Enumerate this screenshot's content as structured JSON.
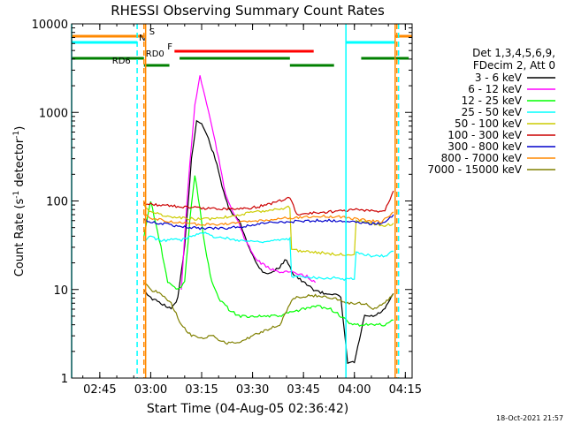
{
  "chart_data": {
    "type": "line",
    "title": "RHESSI Observing Summary Count Rates",
    "xlabel": "Start Time (04-Aug-05 02:36:42)",
    "ylabel_main": "Count Rate (s",
    "ylabel_sup1": "-1",
    "ylabel_mid": " detector",
    "ylabel_sup2": "-1",
    "ylabel_end": ")",
    "x_range": [
      "02:36:42",
      "04:17:00"
    ],
    "x_ticks": [
      {
        "t": "02:45",
        "label": "02:45"
      },
      {
        "t": "03:00",
        "label": "03:00"
      },
      {
        "t": "03:15",
        "label": "03:15"
      },
      {
        "t": "03:30",
        "label": "03:30"
      },
      {
        "t": "03:45",
        "label": "03:45"
      },
      {
        "t": "04:00",
        "label": "04:00"
      },
      {
        "t": "04:15",
        "label": "04:15"
      }
    ],
    "y_scale": "log",
    "ylim": [
      1,
      10000
    ],
    "y_ticks": [
      {
        "v": 1,
        "label": "1"
      },
      {
        "v": 10,
        "label": "10"
      },
      {
        "v": 100,
        "label": "100"
      },
      {
        "v": 1000,
        "label": "1000"
      },
      {
        "v": 10000,
        "label": "10000"
      }
    ],
    "legend_header": [
      "Det 1,3,4,5,6,9,",
      "FDecim 2, Att 0"
    ],
    "legend_placement": "right",
    "series": [
      {
        "name": "3 - 6 keV",
        "color": "#000000",
        "x": [
          "02:58:00",
          "03:00:00",
          "03:03:00",
          "03:06:00",
          "03:08:00",
          "03:10:00",
          "03:12:00",
          "03:13:30",
          "03:15:00",
          "03:17:00",
          "03:19:00",
          "03:21:00",
          "03:23:00",
          "03:26:00",
          "03:29:00",
          "03:31:00",
          "03:33:00",
          "03:35:00",
          "03:38:00",
          "03:40:00",
          "03:42:00",
          "03:45:00",
          "03:48:00",
          "03:51:00",
          "03:54:00",
          "03:56:00",
          "03:58:00",
          "04:00:00",
          "04:03:00",
          "04:06:00",
          "04:09:00",
          "04:11:30"
        ],
        "y": [
          10,
          8,
          7,
          6,
          8,
          30,
          300,
          800,
          750,
          500,
          300,
          150,
          80,
          60,
          30,
          20,
          16,
          15,
          18,
          22,
          15,
          12,
          10,
          9,
          9,
          8,
          1.5,
          1.5,
          5,
          5,
          6,
          9
        ]
      },
      {
        "name": "6 - 12 keV",
        "color": "#ff00ff",
        "x": [
          "03:09:00",
          "03:11:00",
          "03:13:00",
          "03:14:30",
          "03:16:00",
          "03:18:00",
          "03:20:00",
          "03:22:00",
          "03:24:00",
          "03:26:00",
          "03:28:00",
          "03:31:00",
          "03:34:00",
          "03:37:00",
          "03:40:00",
          "03:43:00",
          "03:46:00",
          "03:48:30"
        ],
        "y": [
          10,
          150,
          1200,
          2600,
          1500,
          700,
          300,
          120,
          80,
          55,
          35,
          22,
          18,
          16,
          16,
          15,
          14,
          12
        ]
      },
      {
        "name": "12 - 25 keV",
        "color": "#00ff00",
        "x": [
          "02:58:00",
          "03:00:00",
          "03:03:00",
          "03:05:00",
          "03:08:00",
          "03:10:00",
          "03:11:30",
          "03:13:00",
          "03:14:30",
          "03:16:00",
          "03:18:00",
          "03:20:00",
          "03:23:00",
          "03:26:00",
          "03:30:00",
          "03:34:00",
          "03:38:00",
          "03:41:00",
          "03:45:00",
          "03:49:00",
          "03:53:00",
          "03:56:00",
          "03:59:00",
          "04:02:00",
          "04:06:00",
          "04:09:00",
          "04:11:30"
        ],
        "y": [
          40,
          100,
          30,
          12,
          10,
          12,
          60,
          200,
          80,
          30,
          12,
          8,
          6,
          5,
          5,
          5,
          5,
          5.5,
          6,
          6.5,
          6,
          5,
          4,
          4,
          4,
          4,
          4.5
        ]
      },
      {
        "name": "25 - 50 keV",
        "color": "#00ffff",
        "x": [
          "02:58:00",
          "03:00:00",
          "03:03:00",
          "03:06:00",
          "03:09:00",
          "03:12:00",
          "03:15:00",
          "03:18:00",
          "03:22:00",
          "03:26:00",
          "03:30:00",
          "03:34:00",
          "03:38:00",
          "03:41:00",
          "03:41:30",
          "03:46:00",
          "03:50:00",
          "03:54:00",
          "03:58:00",
          "04:00:00",
          "04:00:30",
          "04:05:00",
          "04:09:00",
          "04:11:30"
        ],
        "y": [
          35,
          40,
          35,
          37,
          36,
          40,
          45,
          40,
          38,
          36,
          35,
          35,
          36,
          37,
          14,
          14,
          13.5,
          13.5,
          13,
          13.5,
          26,
          24,
          24,
          27
        ]
      },
      {
        "name": "50 - 100 keV",
        "color": "#cccc00",
        "x": [
          "02:58:00",
          "03:00:00",
          "03:03:00",
          "03:06:00",
          "03:09:00",
          "03:12:00",
          "03:15:00",
          "03:18:00",
          "03:22:00",
          "03:26:00",
          "03:30:00",
          "03:34:00",
          "03:38:00",
          "03:41:00",
          "03:41:30",
          "03:46:00",
          "03:50:00",
          "03:54:00",
          "03:58:00",
          "04:00:00",
          "04:00:30",
          "04:05:00",
          "04:09:00",
          "04:11:30"
        ],
        "y": [
          90,
          75,
          70,
          65,
          64,
          63,
          62,
          63,
          66,
          70,
          74,
          78,
          82,
          85,
          28,
          27,
          26,
          25,
          25,
          25,
          60,
          55,
          52,
          56
        ]
      },
      {
        "name": "100 - 300 keV",
        "color": "#cc0000",
        "x": [
          "02:58:00",
          "03:00:00",
          "03:03:00",
          "03:06:00",
          "03:09:00",
          "03:12:00",
          "03:15:00",
          "03:18:00",
          "03:22:00",
          "03:26:00",
          "03:30:00",
          "03:34:00",
          "03:38:00",
          "03:41:00",
          "03:43:00",
          "03:46:00",
          "03:50:00",
          "03:54:00",
          "03:58:00",
          "04:00:00",
          "04:03:00",
          "04:06:00",
          "04:09:00",
          "04:11:30"
        ],
        "y": [
          95,
          92,
          90,
          88,
          86,
          84,
          83,
          82,
          82,
          82,
          84,
          90,
          100,
          110,
          70,
          72,
          74,
          76,
          78,
          80,
          78,
          76,
          78,
          130
        ]
      },
      {
        "name": "300 - 800 keV",
        "color": "#0000cc",
        "x": [
          "02:58:00",
          "03:00:00",
          "03:04:00",
          "03:08:00",
          "03:12:00",
          "03:16:00",
          "03:20:00",
          "03:24:00",
          "03:28:00",
          "03:32:00",
          "03:36:00",
          "03:40:00",
          "03:44:00",
          "03:48:00",
          "03:52:00",
          "03:56:00",
          "04:00:00",
          "04:04:00",
          "04:08:00",
          "04:11:30"
        ],
        "y": [
          62,
          58,
          55,
          52,
          50,
          49,
          49,
          50,
          52,
          55,
          57,
          58,
          59,
          60,
          60,
          60,
          58,
          56,
          55,
          70
        ]
      },
      {
        "name": "800 - 7000 keV",
        "color": "#ff8800",
        "x": [
          "02:58:00",
          "03:00:00",
          "03:04:00",
          "03:08:00",
          "03:12:00",
          "03:16:00",
          "03:20:00",
          "03:24:00",
          "03:28:00",
          "03:32:00",
          "03:36:00",
          "03:40:00",
          "03:44:00",
          "03:48:00",
          "03:52:00",
          "03:56:00",
          "04:00:00",
          "04:04:00",
          "04:08:00",
          "04:11:30"
        ],
        "y": [
          70,
          64,
          60,
          57,
          55,
          54,
          55,
          56,
          58,
          60,
          62,
          64,
          65,
          66,
          67,
          66,
          63,
          60,
          58,
          75
        ]
      },
      {
        "name": "7000 - 15000 keV",
        "color": "#808000",
        "x": [
          "02:58:00",
          "03:00:00",
          "03:03:00",
          "03:06:00",
          "03:09:00",
          "03:12:00",
          "03:15:00",
          "03:18:00",
          "03:22:00",
          "03:26:00",
          "03:30:00",
          "03:34:00",
          "03:38:00",
          "03:42:00",
          "03:46:00",
          "03:50:00",
          "03:54:00",
          "03:58:00",
          "04:00:00",
          "04:03:00",
          "04:06:00",
          "04:09:00",
          "04:11:30"
        ],
        "y": [
          12,
          10,
          9,
          7,
          4,
          3,
          2.8,
          3,
          2.5,
          2.5,
          3,
          3.5,
          4,
          8,
          8.5,
          8.5,
          8,
          7,
          7,
          7,
          6,
          7,
          9
        ]
      }
    ],
    "flag_bars": [
      {
        "label": "S",
        "color": "#ff8800",
        "segments": [
          [
            "02:36:42",
            "02:58:00"
          ],
          [
            "04:12:00",
            "04:17:00"
          ]
        ]
      },
      {
        "label": "N",
        "color": "#00ffff",
        "segments": [
          [
            "02:36:42",
            "02:56:00"
          ],
          [
            "03:57:30",
            "04:12:00"
          ]
        ]
      },
      {
        "label": "F",
        "color": "#ff0000",
        "segments": [
          [
            "03:07:00",
            "03:48:00"
          ]
        ]
      },
      {
        "label": "RD0",
        "color": "#008000",
        "segments": [
          [
            "02:36:42",
            "02:58:00"
          ],
          [
            "03:08:30",
            "03:41:00"
          ],
          [
            "04:02:00",
            "04:16:00"
          ]
        ]
      },
      {
        "label": "RD6",
        "color": "#008000",
        "segments": [
          [
            "02:58:00",
            "03:05:30"
          ],
          [
            "03:41:00",
            "03:54:00"
          ]
        ]
      }
    ],
    "vertical_markers": [
      {
        "t": "02:36:42",
        "color": "#00ffff",
        "style": "solid"
      },
      {
        "t": "02:56:00",
        "color": "#00ffff",
        "style": "dashed"
      },
      {
        "t": "02:58:00",
        "color": "#ff8800",
        "style": "dashed"
      },
      {
        "t": "02:58:30",
        "color": "#ff8800",
        "style": "solid"
      },
      {
        "t": "03:57:30",
        "color": "#00ffff",
        "style": "solid"
      },
      {
        "t": "04:12:00",
        "color": "#ff8800",
        "style": "solid"
      },
      {
        "t": "04:12:30",
        "color": "#ff8800",
        "style": "dashed"
      },
      {
        "t": "04:13:00",
        "color": "#00ffff",
        "style": "dashed"
      }
    ],
    "timestamp": "18-Oct-2021 21:57"
  }
}
